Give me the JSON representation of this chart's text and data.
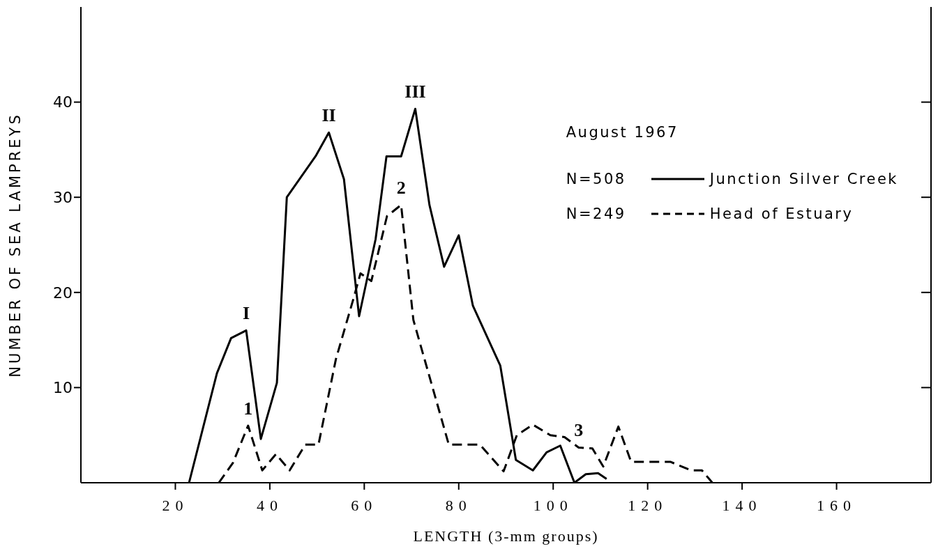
{
  "chart_data": {
    "type": "line",
    "xlabel": "LENGTH (3-mm groups)",
    "ylabel": "NUMBER OF SEA LAMPREYS",
    "legend_title": "August 1967",
    "xlim": [
      0,
      180
    ],
    "xticks": [
      20,
      40,
      60,
      80,
      100,
      120,
      140,
      160
    ],
    "ylim": [
      0,
      50
    ],
    "yticks": [
      10,
      20,
      30,
      40
    ],
    "legend": "top right",
    "marker": "none",
    "series": [
      {
        "name": "Junction Silver Creek",
        "color": "#000000",
        "line_style": "solid",
        "x": [
          22.9,
          28.8,
          31.8,
          35.0,
          38.1,
          41.5,
          43.6,
          49.8,
          52.5,
          55.7,
          58.9,
          62.4,
          64.7,
          67.8,
          70.8,
          73.8,
          76.9,
          80.0,
          83.0,
          88.8,
          92.1,
          95.7,
          98.6,
          101.5,
          104.5,
          106.9,
          109.5,
          111.3
        ],
        "values": [
          0,
          11.5,
          15.2,
          16.0,
          4.6,
          10.5,
          30.0,
          34.4,
          36.8,
          31.9,
          17.5,
          25.6,
          34.3,
          34.3,
          39.3,
          29.2,
          22.7,
          26.0,
          18.6,
          12.3,
          2.4,
          1.3,
          3.2,
          3.9,
          0,
          0.9,
          1.0,
          0.4
        ]
      },
      {
        "name": "Head of Estuary",
        "color": "#000000",
        "line_style": "dashed",
        "x": [
          29.2,
          32.2,
          35.4,
          38.4,
          41.3,
          44.2,
          47.5,
          50.3,
          54.0,
          57.8,
          59.2,
          61.5,
          64.8,
          67.8,
          70.4,
          77.9,
          84.5,
          89.5,
          92.3,
          95.7,
          99.4,
          102.4,
          105.4,
          108.3,
          110.6,
          113.8,
          116.5,
          124.8,
          129.2,
          131.5,
          133.7
        ],
        "values": [
          0,
          2.1,
          6.0,
          1.3,
          3.0,
          1.3,
          4.0,
          4.0,
          13.0,
          19.5,
          22.0,
          21.2,
          28.0,
          29.2,
          17.1,
          4.0,
          4.0,
          1.2,
          5.0,
          6.1,
          5.0,
          4.8,
          3.7,
          3.6,
          1.7,
          5.9,
          2.2,
          2.2,
          1.3,
          1.3,
          0
        ]
      }
    ],
    "annotations": [
      "N=508",
      "N=249",
      {
        "text": "I",
        "x": 35.0,
        "y": 16.0
      },
      {
        "text": "II",
        "x": 52.5,
        "y": 36.8
      },
      {
        "text": "III",
        "x": 70.8,
        "y": 39.3
      },
      {
        "text": "1",
        "x": 35.4,
        "y": 6.0
      },
      {
        "text": "2",
        "x": 67.8,
        "y": 29.2
      },
      {
        "text": "3",
        "x": 105.4,
        "y": 3.7
      }
    ]
  }
}
